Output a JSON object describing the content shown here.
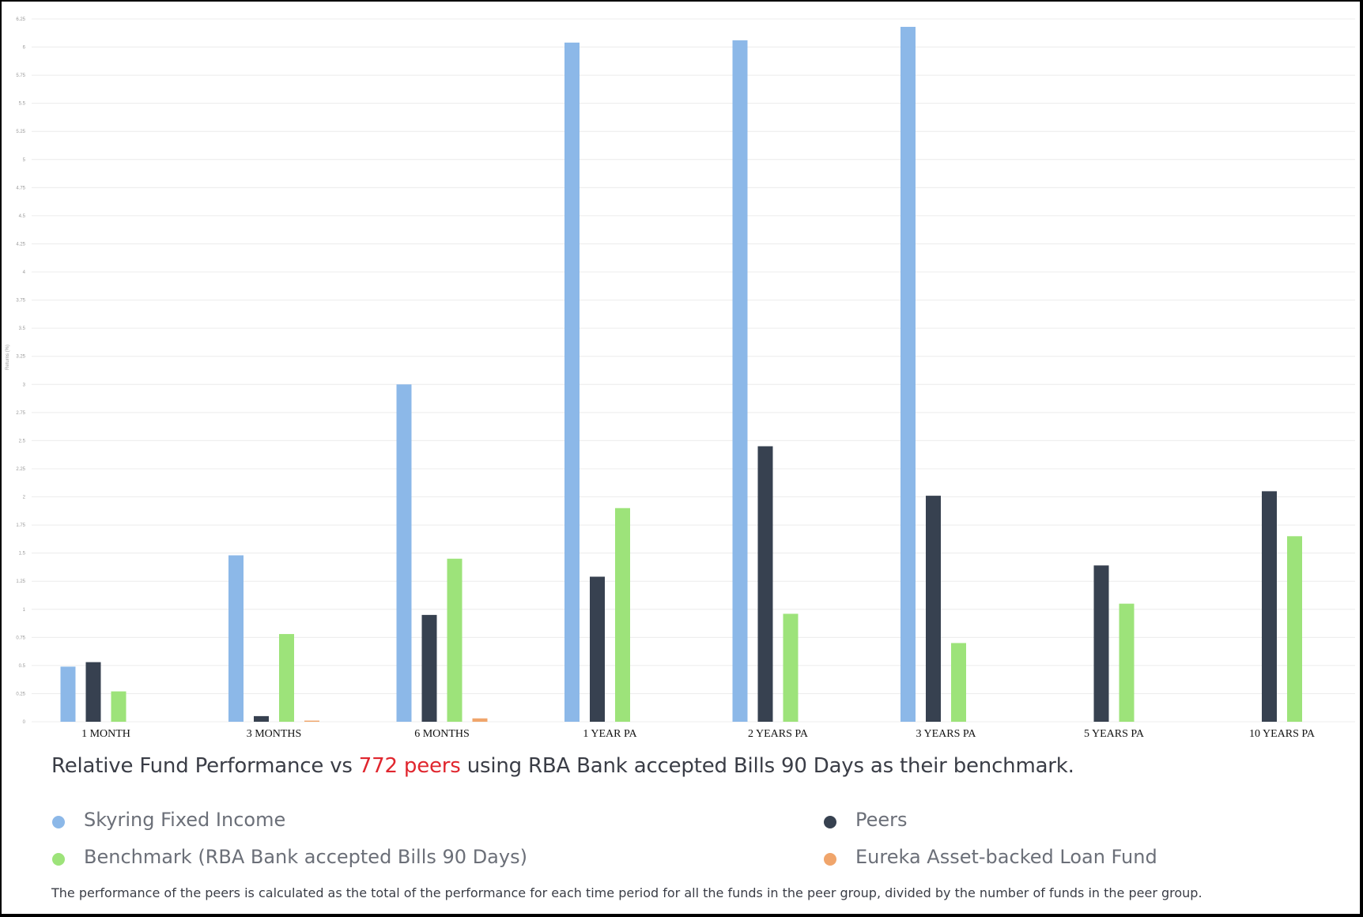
{
  "chart_data": {
    "type": "bar",
    "title": "",
    "ylabel": "Returns (%)",
    "xlabel": "",
    "ylim": [
      0,
      6.25
    ],
    "yticks": [
      "0",
      "0.25",
      "0.5",
      "0.75",
      "1",
      "1.25",
      "1.5",
      "1.75",
      "2",
      "2.25",
      "2.5",
      "2.75",
      "3",
      "3.25",
      "3.5",
      "3.75",
      "4",
      "4.25",
      "4.5",
      "4.75",
      "5",
      "5.25",
      "5.5",
      "5.75",
      "6",
      "6.25"
    ],
    "grid": true,
    "categories": [
      "1 MONTH",
      "3 MONTHS",
      "6 MONTHS",
      "1 YEAR PA",
      "2 YEARS PA",
      "3 YEARS PA",
      "5 YEARS PA",
      "10 YEARS PA"
    ],
    "series": [
      {
        "name": "Skyring Fixed Income",
        "color": "#8cb8e8",
        "values": [
          0.49,
          1.48,
          3.0,
          6.04,
          6.06,
          6.18,
          null,
          null
        ]
      },
      {
        "name": "Peers",
        "color": "#374150",
        "values": [
          0.53,
          0.05,
          0.95,
          1.29,
          2.45,
          2.01,
          1.39,
          2.05
        ]
      },
      {
        "name": "Benchmark (RBA Bank accepted Bills 90 Days)",
        "color": "#9de37a",
        "values": [
          0.27,
          0.78,
          1.45,
          1.9,
          0.96,
          0.7,
          1.05,
          1.65
        ]
      },
      {
        "name": "Eureka Asset-backed Loan Fund",
        "color": "#f0a56b",
        "values": [
          null,
          0.01,
          0.03,
          null,
          null,
          null,
          null,
          null
        ]
      }
    ]
  },
  "caption": {
    "prefix": "Relative Fund Performance vs ",
    "highlight": "772 peers",
    "suffix": " using RBA Bank accepted Bills 90 Days as their benchmark."
  },
  "legend": [
    {
      "label": "Skyring Fixed Income",
      "color": "#8cb8e8"
    },
    {
      "label": "Peers",
      "color": "#374150"
    },
    {
      "label": "Benchmark (RBA Bank accepted Bills 90 Days)",
      "color": "#9de37a"
    },
    {
      "label": "Eureka Asset-backed Loan Fund",
      "color": "#f0a56b"
    }
  ],
  "footnote": "The performance of the peers is calculated as the total of the performance for each time period for all the funds in the peer group, divided by the number of funds in the peer group."
}
